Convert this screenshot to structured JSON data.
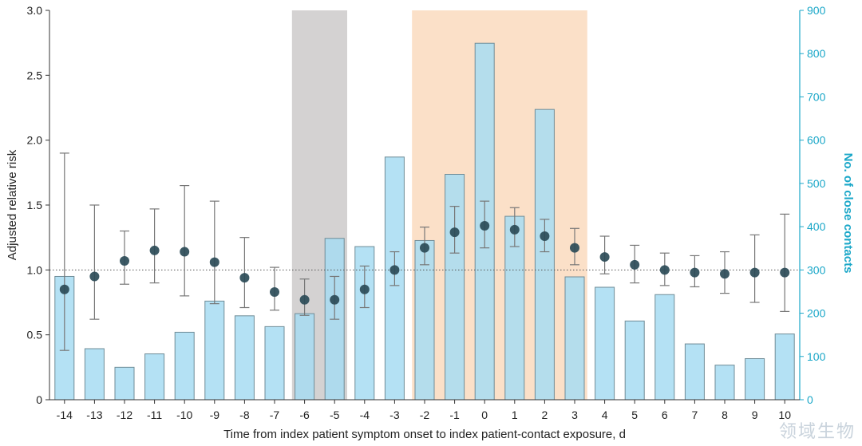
{
  "chart_data": {
    "type": "bar+errorbar",
    "xlabel": "Time from index patient symptom onset to index patient-contact exposure, d",
    "ylabel_left": "Adjusted relative risk",
    "ylabel_right": "No. of close contacts",
    "categories": [
      "-14",
      "-13",
      "-12",
      "-11",
      "-10",
      "-9",
      "-8",
      "-7",
      "-6",
      "-5",
      "-4",
      "-3",
      "-2",
      "-1",
      "0",
      "1",
      "2",
      "3",
      "4",
      "5",
      "6",
      "7",
      "8",
      "9",
      "10"
    ],
    "left_axis": {
      "range": [
        0,
        3.0
      ],
      "ticks": [
        "0",
        "0.5",
        "1.0",
        "1.5",
        "2.0",
        "2.5",
        "3.0"
      ],
      "tick_values": [
        0,
        0.5,
        1.0,
        1.5,
        2.0,
        2.5,
        3.0
      ]
    },
    "right_axis": {
      "range": [
        0,
        900
      ],
      "ticks": [
        "0",
        "100",
        "200",
        "300",
        "400",
        "500",
        "600",
        "700",
        "800",
        "900"
      ],
      "tick_values": [
        0,
        100,
        200,
        300,
        400,
        500,
        600,
        700,
        800,
        900
      ]
    },
    "reference_line": 1.0,
    "shaded_ranges": [
      {
        "from": "-6",
        "to": "-5",
        "color": "#d4d2d2"
      },
      {
        "from": "-2",
        "to": "3",
        "color": "#fbe0c8"
      }
    ],
    "series": [
      {
        "name": "No. of close contacts",
        "axis": "right",
        "kind": "bar",
        "values": [
          285,
          118,
          75,
          106,
          156,
          228,
          194,
          169,
          199,
          373,
          354,
          561,
          368,
          521,
          824,
          424,
          671,
          284,
          260,
          182,
          243,
          129,
          80,
          95,
          152
        ]
      },
      {
        "name": "Adjusted relative risk",
        "axis": "left",
        "kind": "point-errorbar",
        "values": [
          0.85,
          0.95,
          1.07,
          1.15,
          1.14,
          1.06,
          0.94,
          0.83,
          0.77,
          0.77,
          0.85,
          1.0,
          1.17,
          1.29,
          1.34,
          1.31,
          1.26,
          1.17,
          1.1,
          1.04,
          1.0,
          0.98,
          0.97,
          0.98,
          0.98
        ],
        "lower": [
          0.38,
          0.62,
          0.89,
          0.9,
          0.8,
          0.74,
          0.71,
          0.69,
          0.65,
          0.62,
          0.71,
          0.88,
          1.04,
          1.13,
          1.17,
          1.18,
          1.14,
          1.04,
          0.97,
          0.9,
          0.88,
          0.87,
          0.82,
          0.75,
          0.68
        ],
        "upper": [
          1.9,
          1.5,
          1.3,
          1.47,
          1.65,
          1.53,
          1.25,
          1.02,
          0.93,
          0.95,
          1.03,
          1.14,
          1.33,
          1.49,
          1.53,
          1.48,
          1.39,
          1.32,
          1.26,
          1.19,
          1.13,
          1.11,
          1.14,
          1.27,
          1.43
        ]
      }
    ],
    "colors": {
      "bar": "#a7dcf2",
      "bar_edge": "#6f8c97",
      "point": "#2b4b57",
      "errorbar": "#777777",
      "right_axis": "#1aa7c8"
    }
  },
  "watermark": "领域生物"
}
